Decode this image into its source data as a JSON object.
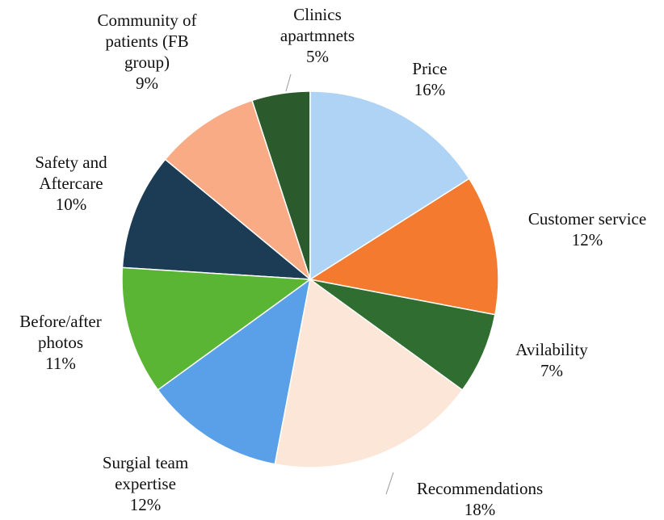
{
  "chart_data": {
    "type": "pie",
    "categories": [
      "Price",
      "Customer service",
      "Avilability",
      "Recommendations",
      "Surgial team expertise",
      "Before/after photos",
      "Safety and Aftercare",
      "Community of patients (FB group)",
      "Clinics apartmnets"
    ],
    "values": [
      16,
      12,
      7,
      18,
      12,
      11,
      10,
      9,
      5
    ],
    "value_labels": [
      "16%",
      "12%",
      "7%",
      "18%",
      "12%",
      "11%",
      "10%",
      "9%",
      "5%"
    ],
    "colors": [
      "#aed3f5",
      "#f47a2f",
      "#2f6e30",
      "#fbe6d8",
      "#5aa0e8",
      "#5ab534",
      "#1b3c54",
      "#f9ab85",
      "#2b5a2c"
    ]
  }
}
